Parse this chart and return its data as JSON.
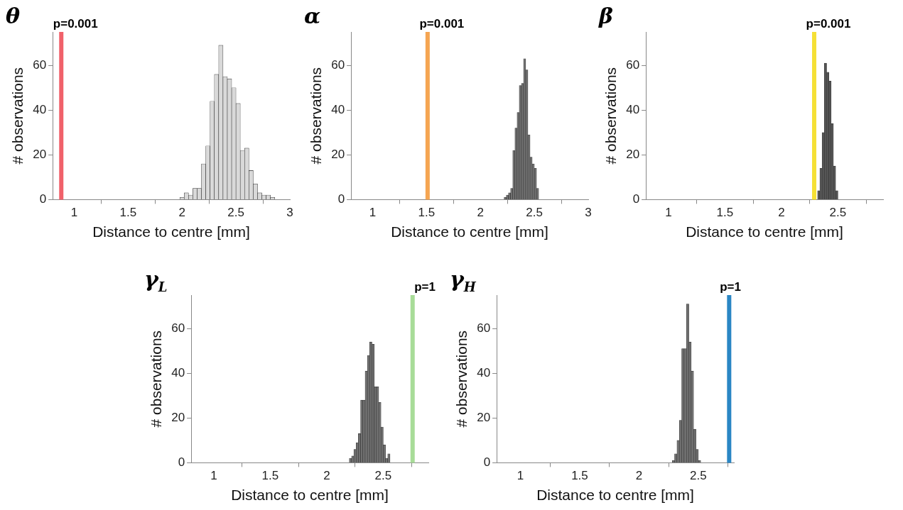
{
  "chart_data": [
    {
      "type": "histogram",
      "title": "θ",
      "xlabel": "Distance to centre [mm]",
      "ylabel": "# observations",
      "color": "#d9d9d9",
      "bins": [
        1.98,
        2.02,
        2.06,
        2.1,
        2.14,
        2.18,
        2.22,
        2.26,
        2.3,
        2.34,
        2.38,
        2.42,
        2.46,
        2.5,
        2.54,
        2.58,
        2.62,
        2.66,
        2.7,
        2.74,
        2.78,
        2.82,
        2.86
      ],
      "values": [
        1,
        3,
        2,
        5,
        5,
        16,
        24,
        44,
        56,
        69,
        55,
        54,
        50,
        43,
        22,
        23,
        13,
        7,
        3,
        2,
        2,
        1
      ],
      "xlim": [
        0.8,
        3
      ],
      "xticks": [
        1,
        1.5,
        2,
        2.5,
        3
      ],
      "ylim": [
        0,
        75
      ],
      "yticks": [
        0,
        20,
        40,
        60
      ],
      "grid": false,
      "ref_lines": [
        {
          "axis": "x",
          "value": 0.88,
          "color": "#f0616a"
        }
      ],
      "annotations": [
        {
          "text": "p=0.001",
          "x": 0.88,
          "y": 75
        }
      ]
    },
    {
      "type": "histogram",
      "title": "α",
      "xlabel": "Distance to centre [mm]",
      "ylabel": "# observations",
      "color": "#707070",
      "bins": [
        2.22,
        2.24,
        2.26,
        2.28,
        2.3,
        2.32,
        2.34,
        2.36,
        2.38,
        2.4,
        2.42,
        2.44,
        2.46,
        2.48,
        2.5,
        2.52,
        2.54
      ],
      "values": [
        1,
        2,
        3,
        5,
        22,
        32,
        39,
        51,
        52,
        63,
        58,
        29,
        19,
        16,
        14,
        5
      ],
      "xlim": [
        0.8,
        3
      ],
      "xticks": [
        1,
        1.5,
        2,
        2.5,
        3
      ],
      "ylim": [
        0,
        75
      ],
      "yticks": [
        0,
        20,
        40,
        60
      ],
      "grid": false,
      "ref_lines": [
        {
          "axis": "x",
          "value": 1.51,
          "color": "#f5a552"
        }
      ],
      "annotations": [
        {
          "text": "p=0.001",
          "x": 1.51,
          "y": 75
        }
      ]
    },
    {
      "type": "histogram",
      "title": "β",
      "xlabel": "Distance to centre [mm]",
      "ylabel": "# observations",
      "color": "#555555",
      "bins": [
        2.32,
        2.34,
        2.36,
        2.38,
        2.4,
        2.42,
        2.44,
        2.46,
        2.48,
        2.5
      ],
      "values": [
        4,
        14,
        30,
        61,
        57,
        53,
        34,
        15,
        4
      ],
      "xlim": [
        0.8,
        2.9
      ],
      "xticks": [
        1,
        1.5,
        2,
        2.5
      ],
      "ylim": [
        0,
        75
      ],
      "yticks": [
        0,
        20,
        40,
        60
      ],
      "grid": false,
      "ref_lines": [
        {
          "axis": "x",
          "value": 2.29,
          "color": "#f5e035"
        }
      ],
      "annotations": [
        {
          "text": "p=0.001",
          "x": 2.29,
          "y": 75
        }
      ]
    },
    {
      "type": "histogram",
      "title": "γ$_{L}$",
      "xlabel": "Distance to centre [mm]",
      "ylabel": "# observations",
      "color": "#707070",
      "bins": [
        2.2,
        2.22,
        2.24,
        2.26,
        2.28,
        2.3,
        2.32,
        2.34,
        2.36,
        2.38,
        2.4,
        2.42,
        2.44,
        2.46,
        2.48,
        2.5,
        2.52,
        2.54,
        2.56
      ],
      "values": [
        2,
        3,
        6,
        9,
        13,
        28,
        28,
        41,
        48,
        54,
        53,
        34,
        34,
        27,
        16,
        8,
        2,
        4
      ],
      "xlim": [
        0.8,
        2.9
      ],
      "xticks": [
        1,
        1.5,
        2,
        2.5
      ],
      "ylim": [
        0,
        75
      ],
      "yticks": [
        0,
        20,
        40,
        60
      ],
      "grid": false,
      "ref_lines": [
        {
          "axis": "x",
          "value": 2.76,
          "color": "#a8dc98"
        }
      ],
      "annotations": [
        {
          "text": "p=1",
          "x": 2.76,
          "y": 75
        }
      ]
    },
    {
      "type": "histogram",
      "title": "γ$_{H}$",
      "xlabel": "Distance to centre [mm]",
      "ylabel": "# observations",
      "color": "#707070",
      "bins": [
        2.28,
        2.3,
        2.32,
        2.34,
        2.36,
        2.38,
        2.4,
        2.42,
        2.44,
        2.46,
        2.48,
        2.5,
        2.52
      ],
      "values": [
        1,
        4,
        10,
        19,
        51,
        51,
        71,
        54,
        41,
        15,
        6,
        1
      ],
      "xlim": [
        0.8,
        2.8
      ],
      "xticks": [
        1,
        1.5,
        2,
        2.5
      ],
      "ylim": [
        0,
        75
      ],
      "yticks": [
        0,
        20,
        40,
        60
      ],
      "grid": false,
      "ref_lines": [
        {
          "axis": "x",
          "value": 2.76,
          "color": "#2a86c4"
        }
      ],
      "annotations": [
        {
          "text": "p=1",
          "x": 2.76,
          "y": 75
        }
      ]
    }
  ]
}
